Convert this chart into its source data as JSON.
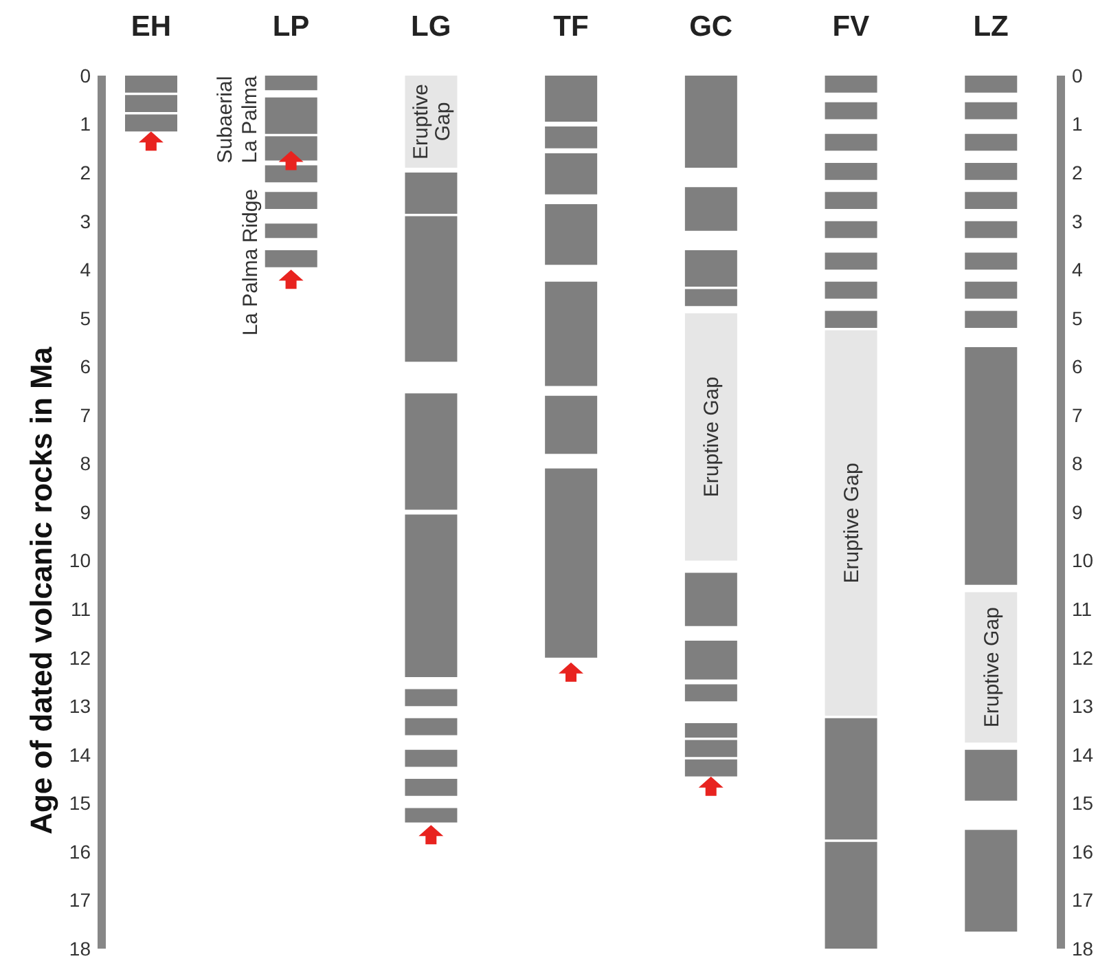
{
  "chart_data": {
    "type": "bar",
    "categories": [
      "EH",
      "LP",
      "LG",
      "TF",
      "GC",
      "FV",
      "LZ"
    ],
    "ylabel": "Age of dated volcanic rocks in Ma",
    "ylim": [
      18,
      0
    ],
    "yticks": [
      0,
      1,
      2,
      3,
      4,
      5,
      6,
      7,
      8,
      9,
      10,
      11,
      12,
      13,
      14,
      15,
      16,
      17,
      18
    ],
    "y2lim": [
      18,
      0
    ],
    "y2ticks": [
      0,
      1,
      2,
      3,
      4,
      5,
      6,
      7,
      8,
      9,
      10,
      11,
      12,
      13,
      14,
      15,
      16,
      17,
      18
    ],
    "series": [
      {
        "color": "#7f7f7f",
        "base": [
          0,
          0,
          2.0,
          0,
          0,
          0,
          0
        ],
        "values": [
          0.35,
          0.3,
          0.85,
          0.95,
          1.9,
          0.35,
          0.35
        ]
      },
      {
        "color": "#7f7f7f",
        "base": [
          0.4,
          0.45,
          2.9,
          1.05,
          2.3,
          0.55,
          0.55
        ],
        "values": [
          0.35,
          0.75,
          3.0,
          0.45,
          0.9,
          0.35,
          0.35
        ]
      },
      {
        "color": "#7f7f7f",
        "base": [
          0.8,
          1.25,
          6.55,
          1.6,
          3.6,
          1.2,
          1.2
        ],
        "values": [
          0.35,
          0.5,
          2.4,
          0.85,
          0.75,
          0.35,
          0.35
        ]
      },
      {
        "color": "#7f7f7f",
        "base": [
          null,
          1.85,
          9.05,
          2.65,
          4.4,
          1.8,
          1.8
        ],
        "values": [
          null,
          0.35,
          3.35,
          1.25,
          0.35,
          0.35,
          0.35
        ]
      },
      {
        "color": "#7f7f7f",
        "base": [
          null,
          2.4,
          12.65,
          4.25,
          10.25,
          2.4,
          2.4
        ],
        "values": [
          null,
          0.35,
          0.35,
          2.15,
          1.1,
          0.35,
          0.35
        ]
      },
      {
        "color": "#7f7f7f",
        "base": [
          null,
          3.05,
          13.25,
          6.6,
          11.65,
          3.0,
          3.0
        ],
        "values": [
          null,
          0.3,
          0.35,
          1.2,
          0.8,
          0.35,
          0.35
        ]
      },
      {
        "color": "#7f7f7f",
        "base": [
          null,
          3.6,
          13.9,
          8.1,
          12.55,
          3.65,
          3.65
        ],
        "values": [
          null,
          0.35,
          0.35,
          3.9,
          0.35,
          0.35,
          0.35
        ]
      },
      {
        "color": "#7f7f7f",
        "base": [
          null,
          null,
          14.5,
          null,
          13.35,
          4.25,
          4.25
        ],
        "values": [
          null,
          null,
          0.35,
          null,
          0.3,
          0.35,
          0.35
        ]
      },
      {
        "color": "#7f7f7f",
        "base": [
          null,
          null,
          15.1,
          null,
          13.7,
          4.85,
          4.85
        ],
        "values": [
          null,
          null,
          0.3,
          null,
          0.35,
          0.35,
          0.35
        ]
      },
      {
        "color": "#7f7f7f",
        "base": [
          null,
          null,
          null,
          null,
          14.1,
          13.25,
          5.6
        ],
        "values": [
          null,
          null,
          null,
          null,
          0.35,
          2.5,
          4.9
        ]
      },
      {
        "color": "#7f7f7f",
        "base": [
          null,
          null,
          null,
          null,
          null,
          15.8,
          13.9
        ],
        "values": [
          null,
          null,
          null,
          null,
          null,
          2.2,
          1.05
        ]
      },
      {
        "color": "#7f7f7f",
        "base": [
          null,
          null,
          null,
          null,
          null,
          null,
          15.55
        ],
        "values": [
          null,
          null,
          null,
          null,
          null,
          null,
          2.1
        ]
      },
      {
        "color": "#e6e6e6",
        "base": [
          null,
          null,
          0,
          null,
          4.9,
          5.25,
          10.65
        ],
        "values": [
          null,
          null,
          1.9,
          null,
          5.1,
          7.95,
          3.1
        ],
        "value_labels": [
          null,
          null,
          "Eruptive Gap",
          null,
          "Eruptive Gap",
          "Eruptive Gap",
          "Eruptive Gap"
        ]
      },
      {
        "type": "scatter",
        "color": "#e8231f",
        "marker": "triangle",
        "x": [
          "EH",
          "LP",
          "LP",
          "LG",
          "TF",
          "GC"
        ],
        "values": [
          1.35,
          1.75,
          4.2,
          15.65,
          12.3,
          14.65
        ]
      }
    ],
    "annotations": [
      "Subaerial La Palma",
      {
        "text": "La Palma Ridge",
        "x": "LP",
        "y": 3.85
      }
    ]
  }
}
